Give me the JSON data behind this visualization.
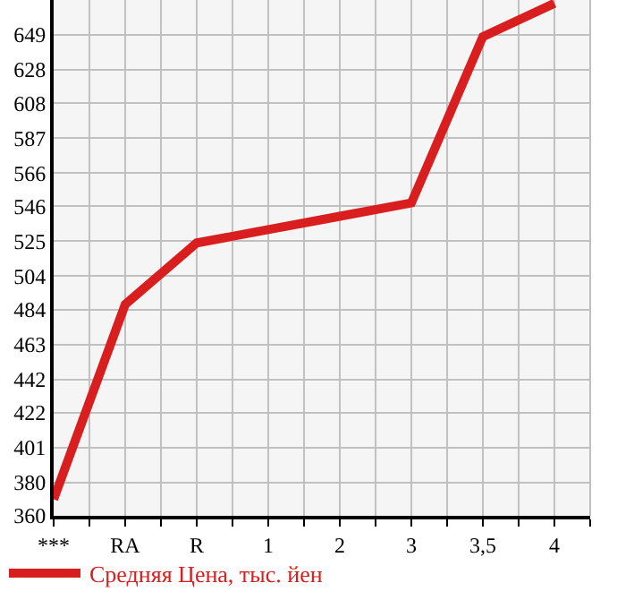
{
  "chart_data": {
    "type": "line",
    "categories": [
      "***",
      "RA",
      "R",
      "1",
      "2",
      "3",
      "3,5",
      "4"
    ],
    "series": [
      {
        "name": "Средняя Цена, тыс. йен",
        "color": "#d81e1e",
        "values": [
          370,
          487,
          524,
          532,
          540,
          548,
          648,
          668
        ]
      }
    ],
    "ylim": [
      360,
      670
    ],
    "yticks": [
      360,
      380,
      401,
      422,
      442,
      463,
      484,
      504,
      525,
      546,
      566,
      587,
      608,
      628,
      649,
      {
        "value": 670,
        "label": null
      }
    ],
    "grid": true,
    "legend": "bottom",
    "marker": "none",
    "line_style": "solid"
  }
}
